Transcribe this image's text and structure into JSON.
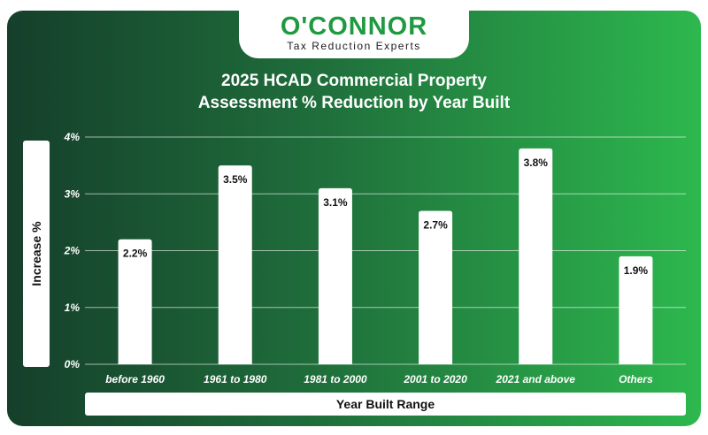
{
  "logo": {
    "name": "O'CONNOR",
    "tagline": "Tax Reduction Experts"
  },
  "colors": {
    "background_left": "#153f2b",
    "background_right": "#2db84e",
    "logo_green": "#1f9a41",
    "bar": "#ffffff"
  },
  "chart_data": {
    "type": "bar",
    "title_line1": "2025 HCAD Commercial Property",
    "title_line2": "Assessment % Reduction by Year Built",
    "xlabel": "Year Built Range",
    "ylabel": "Increase %",
    "categories": [
      "before 1960",
      "1961 to 1980",
      "1981 to 2000",
      "2001 to 2020",
      "2021 and above",
      "Others"
    ],
    "values": [
      2.2,
      3.5,
      3.1,
      2.7,
      3.8,
      1.9
    ],
    "value_labels": [
      "2.2%",
      "3.5%",
      "3.1%",
      "2.7%",
      "3.8%",
      "1.9%"
    ],
    "yticks": [
      0,
      1,
      2,
      3,
      4
    ],
    "ytick_labels": [
      "0%",
      "1%",
      "2%",
      "3%",
      "4%"
    ],
    "ylim": [
      0,
      4
    ],
    "grid": true,
    "legend": "none"
  }
}
